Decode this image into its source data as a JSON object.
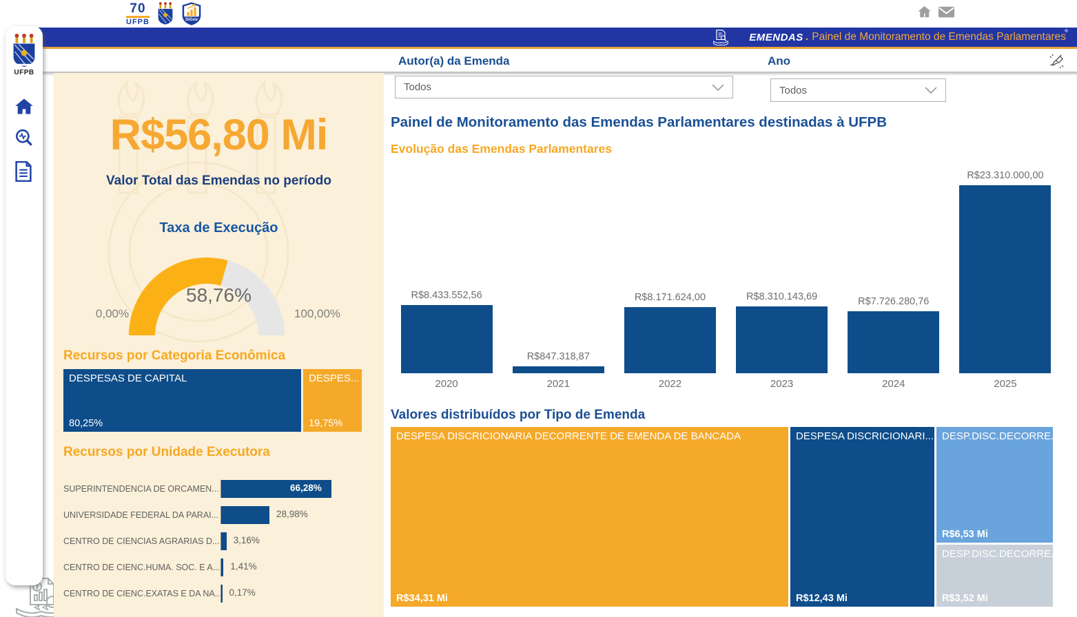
{
  "logos": {
    "seventy": "70",
    "ufpb": "UFPB",
    "sigov": "SiGov"
  },
  "sidebar": {
    "crest_label": "UFPB"
  },
  "banner": {
    "brand": "EMENDAS",
    "dot": ".",
    "title": "Painel de Monitoramento de Emendas Parlamentares"
  },
  "filters": {
    "author": {
      "label": "Autor(a) da Emenda",
      "value": "Todos"
    },
    "year": {
      "label": "Ano",
      "value": "Todos"
    }
  },
  "left_panel": {
    "kpi_value": "R$56,80 Mi",
    "kpi_label": "Valor Total das Emendas no período",
    "gauge": {
      "title": "Taxa de Execução",
      "value_label": "58,76%",
      "value_pct": 58.76,
      "min_label": "0,00%",
      "max_label": "100,00%"
    },
    "categoria_title": "Recursos por Categoria Econômica",
    "unidade_title": "Recursos por Unidade Executora"
  },
  "main": {
    "title": "Painel de Monitoramento das Emendas Parlamentares destinadas à UFPB",
    "evolucao_title": "Evolução das Emendas Parlamentares",
    "tipo_title": "Valores distribuídos por Tipo de Emenda"
  },
  "colors": {
    "orange": "#f5a929",
    "dark_blue": "#0e4d8a",
    "light_blue": "#6aa4dc",
    "gray_blue": "#c7d0d8",
    "banner_blue": "#2236a3",
    "cream": "#fbf0d9"
  },
  "chart_data": [
    {
      "name": "evolucao",
      "type": "bar",
      "title": "Evolução das Emendas Parlamentares",
      "categories": [
        "2020",
        "2021",
        "2022",
        "2023",
        "2024",
        "2025"
      ],
      "values": [
        8433552.56,
        847318.87,
        8171624.0,
        8310143.69,
        7726280.76,
        23310000.0
      ],
      "labels": [
        "R$8.433.552,56",
        "R$847.318,87",
        "R$8.171.624,00",
        "R$8.310.143,69",
        "R$7.726.280,76",
        "R$23.310.000,00"
      ],
      "xlabel": "",
      "ylabel": "",
      "grid": false
    },
    {
      "name": "categoria",
      "type": "treemap",
      "title": "Recursos por Categoria Econômica",
      "items": [
        {
          "label": "DESPESAS DE CAPITAL",
          "pct_label": "80,25%",
          "value": 80.25,
          "color": "#0e4d8a"
        },
        {
          "label": "DESPES...",
          "pct_label": "19,75%",
          "value": 19.75,
          "color": "#f5a929"
        }
      ]
    },
    {
      "name": "unidade",
      "type": "bar",
      "title": "Recursos por Unidade Executora",
      "items": [
        {
          "label": "SUPERINTENDENCIA DE ORCAMEN...",
          "value_label": "66,28%",
          "value": 66.28,
          "label_inside": true
        },
        {
          "label": "UNIVERSIDADE FEDERAL DA PARAI...",
          "value_label": "28,98%",
          "value": 28.98,
          "label_inside": false
        },
        {
          "label": "CENTRO DE CIENCIAS AGRARIAS D...",
          "value_label": "3,16%",
          "value": 3.16,
          "label_inside": false
        },
        {
          "label": "CENTRO DE CIENC.HUMA. SOC. E A...",
          "value_label": "1,41%",
          "value": 1.41,
          "label_inside": false
        },
        {
          "label": "CENTRO DE CIENC.EXATAS E DA NA...",
          "value_label": "0,17%",
          "value": 0.17,
          "label_inside": false
        }
      ]
    },
    {
      "name": "tipo",
      "type": "treemap",
      "title": "Valores distribuídos por Tipo de Emenda",
      "items": [
        {
          "label": "DESPESA DISCRICIONARIA DECORRENTE DE EMENDA DE BANCADA",
          "value_label": "R$34,31 Mi",
          "value": 34.31,
          "color": "#f5a929"
        },
        {
          "label": "DESPESA DISCRICIONARI...",
          "value_label": "R$12,43 Mi",
          "value": 12.43,
          "color": "#0e4d8a"
        },
        {
          "label": "DESP.DISC.DECORRE...",
          "value_label": "R$6,53 Mi",
          "value": 6.53,
          "color": "#6aa4dc"
        },
        {
          "label": "DESP.DISC.DECORRE...",
          "value_label": "R$3,52 Mi",
          "value": 3.52,
          "color": "#c7d0d8"
        }
      ]
    }
  ]
}
